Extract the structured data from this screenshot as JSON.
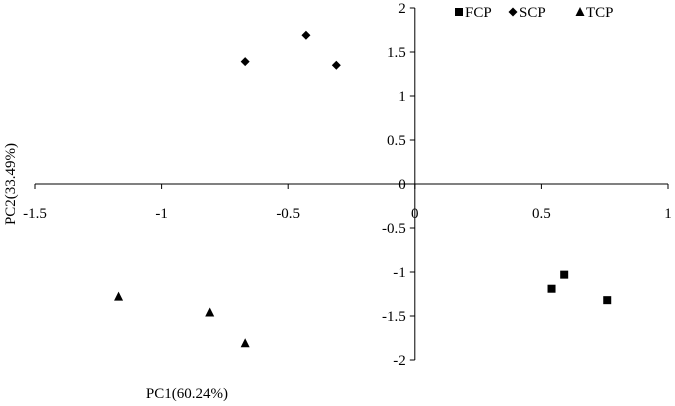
{
  "chart_data": {
    "type": "scatter",
    "title": "",
    "xlabel": "PC1(60.24%)",
    "ylabel": "PC2(33.49%)",
    "xlim": [
      -1.5,
      1
    ],
    "ylim": [
      -2,
      2
    ],
    "x_ticks": [
      -1.5,
      -1,
      -0.5,
      0,
      0.5,
      1
    ],
    "y_ticks": [
      -2,
      -1.5,
      -1,
      -0.5,
      0,
      0.5,
      1,
      1.5,
      2
    ],
    "x_tick_labels": [
      "-1.5",
      "-1",
      "-0.5",
      "0",
      "0.5",
      "1"
    ],
    "y_tick_labels": [
      "-2",
      "-1.5",
      "-1",
      "-0.5",
      "0",
      "0.5",
      "1",
      "1.5",
      "2"
    ],
    "grid": false,
    "legend_position": "top-right",
    "series": [
      {
        "name": "FCP",
        "marker": "square",
        "color": "#000000",
        "points": [
          {
            "x": 0.54,
            "y": -1.19
          },
          {
            "x": 0.59,
            "y": -1.03
          },
          {
            "x": 0.76,
            "y": -1.32
          }
        ]
      },
      {
        "name": "SCP",
        "marker": "diamond",
        "color": "#000000",
        "points": [
          {
            "x": -0.67,
            "y": 1.39
          },
          {
            "x": -0.43,
            "y": 1.69
          },
          {
            "x": -0.31,
            "y": 1.35
          }
        ]
      },
      {
        "name": "TCP",
        "marker": "triangle",
        "color": "#000000",
        "points": [
          {
            "x": -1.17,
            "y": -1.28
          },
          {
            "x": -0.81,
            "y": -1.46
          },
          {
            "x": -0.67,
            "y": -1.81
          }
        ]
      }
    ]
  }
}
